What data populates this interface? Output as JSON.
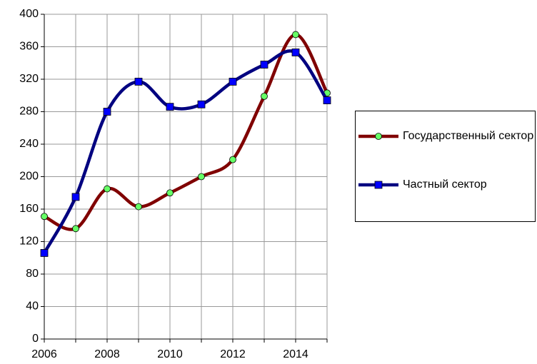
{
  "chart_data": {
    "type": "line",
    "x": [
      2006,
      2007,
      2008,
      2009,
      2010,
      2011,
      2012,
      2013,
      2014,
      2015
    ],
    "series": [
      {
        "name": "Государственный сектор",
        "color": "#800000",
        "marker_color": "#66ff66",
        "marker": "circle",
        "values": [
          151,
          136,
          185,
          163,
          180,
          200,
          221,
          299,
          375,
          303
        ]
      },
      {
        "name": "Частный сектор",
        "color": "#000080",
        "marker_color": "#0000ff",
        "marker": "square",
        "values": [
          106,
          175,
          280,
          317,
          286,
          289,
          317,
          338,
          353,
          294
        ]
      }
    ],
    "xlim": [
      2006,
      2015
    ],
    "xticks": [
      2006,
      2008,
      2010,
      2012,
      2014
    ],
    "ylim": [
      0,
      400
    ],
    "yticks": [
      0,
      40,
      80,
      120,
      160,
      200,
      240,
      280,
      320,
      360,
      400
    ],
    "grid": true,
    "legend": "right"
  }
}
